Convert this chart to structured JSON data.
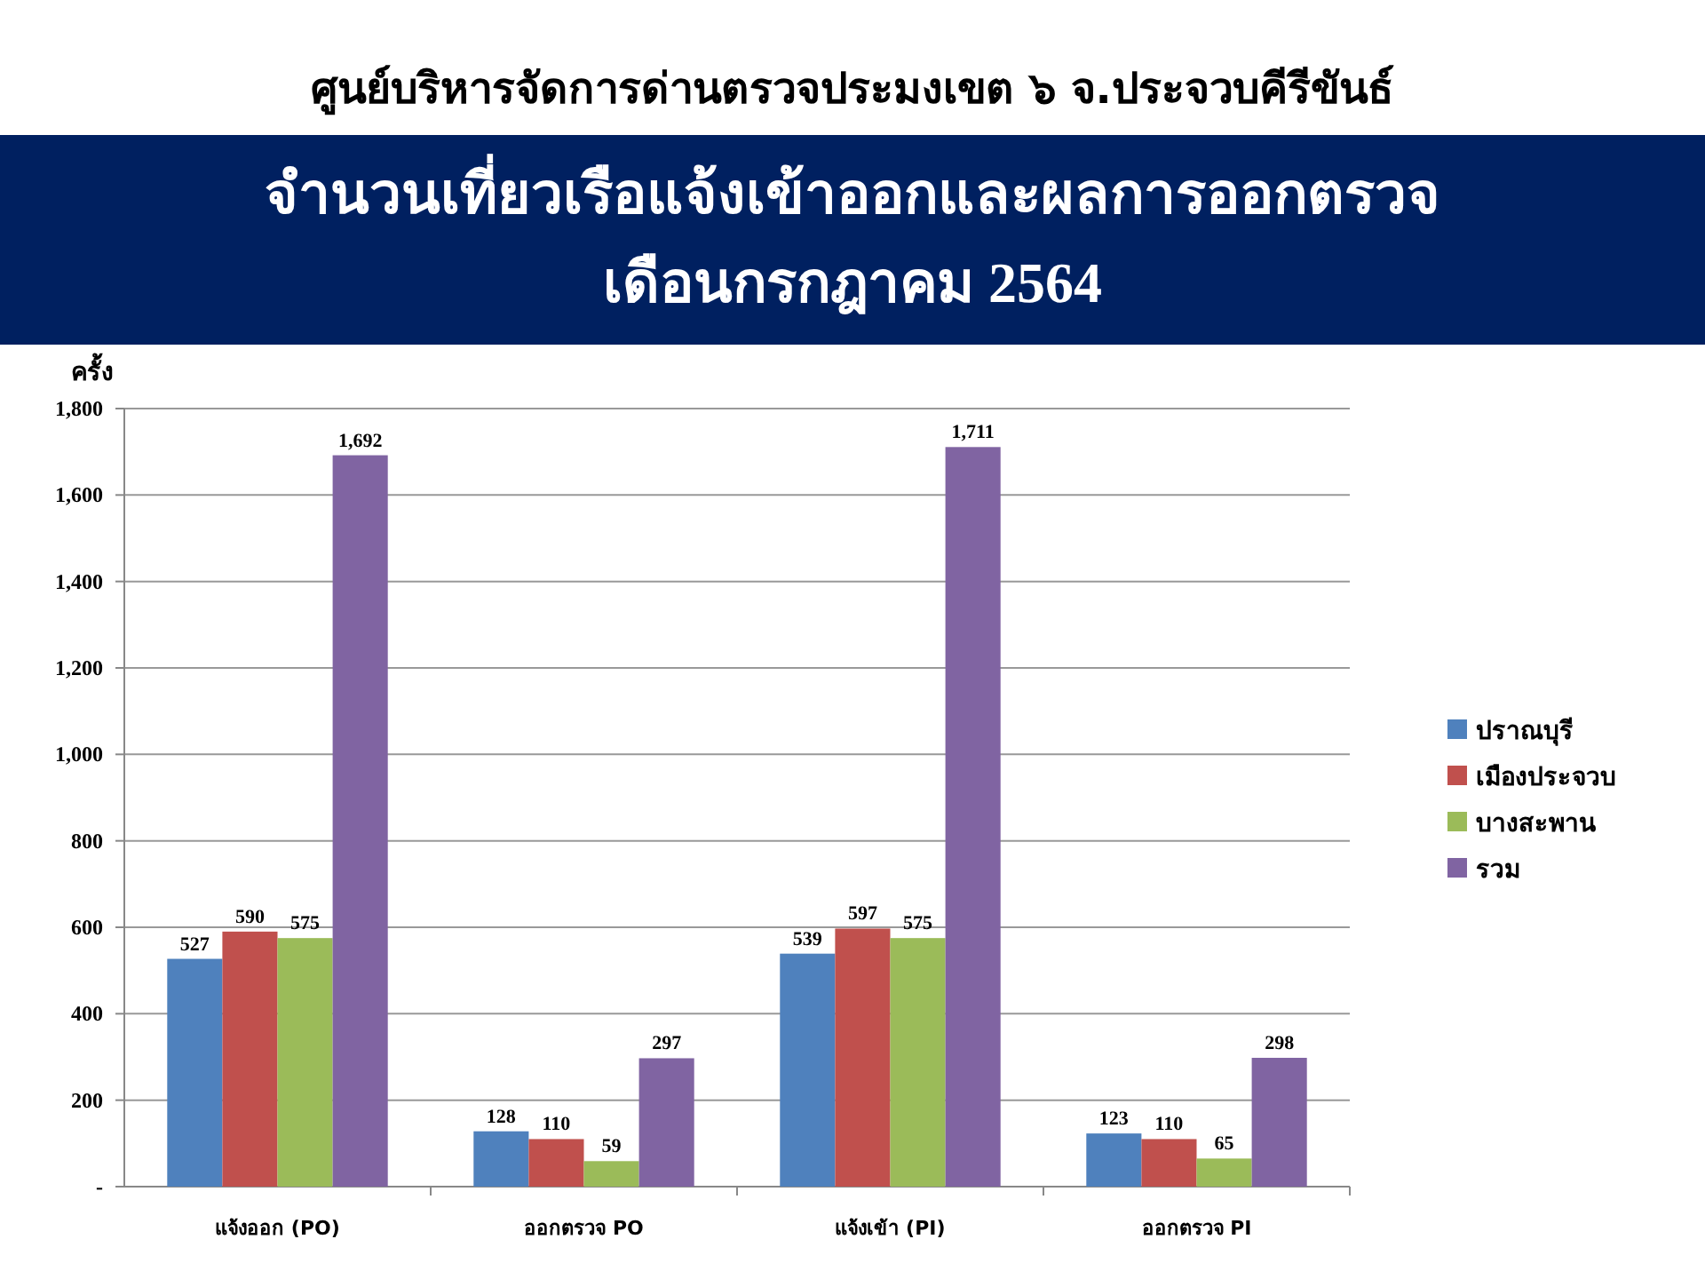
{
  "chart_data": {
    "type": "bar",
    "title": "ศูนย์บริหารจัดการด่านตรวจประมงเขต ๖ จ.ประจวบคีรีขันธ์",
    "subtitle": "จำนวนเที่ยวเรือแจ้งเข้าออกและผลการออกตรวจ\nเดือนกรกฎาคม 2564",
    "ylabel": "ครั้ง",
    "categories": [
      "แจ้งออก (PO)",
      "ออกตรวจ PO",
      "แจ้งเข้า (PI)",
      "ออกตรวจ PI"
    ],
    "series": [
      {
        "name": "ปราณบุรี",
        "color": "#4f81bd",
        "values": [
          527,
          128,
          539,
          123
        ],
        "value_labels": [
          "527",
          "128",
          "539",
          "123"
        ]
      },
      {
        "name": "เมืองประจวบ",
        "color": "#c0504d",
        "values": [
          590,
          110,
          597,
          110
        ],
        "value_labels": [
          "590",
          "110",
          "597",
          "110"
        ]
      },
      {
        "name": "บางสะพาน",
        "color": "#9bbb59",
        "values": [
          575,
          59,
          575,
          65
        ],
        "value_labels": [
          "575",
          "59",
          "575",
          "65"
        ]
      },
      {
        "name": "รวม",
        "color": "#8064a2",
        "values": [
          1692,
          297,
          1711,
          298
        ],
        "value_labels": [
          "1,692",
          "297",
          "1,711",
          "298"
        ]
      }
    ],
    "ylim": [
      0,
      1800
    ],
    "yticks": [
      {
        "value": 0,
        "label": "-"
      },
      200,
      400,
      600,
      800,
      {
        "value": 1000,
        "label": "1,000"
      },
      {
        "value": 1200,
        "label": "1,200"
      },
      {
        "value": 1400,
        "label": "1,400"
      },
      {
        "value": 1600,
        "label": "1,600"
      },
      {
        "value": 1800,
        "label": "1,800"
      }
    ],
    "grid": "y",
    "legend": "right"
  }
}
